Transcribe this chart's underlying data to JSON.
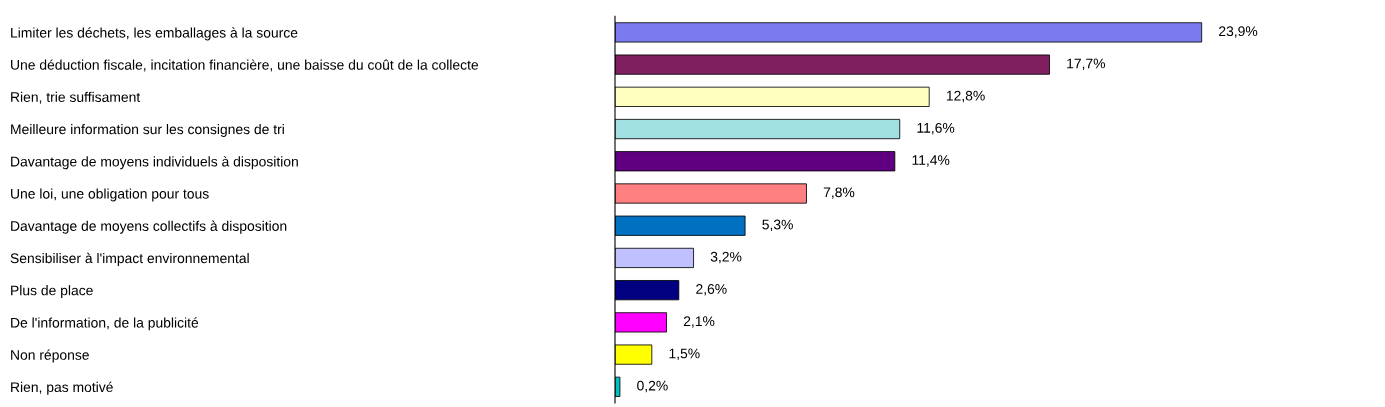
{
  "chart_data": {
    "type": "bar",
    "orientation": "horizontal",
    "categories": [
      "Limiter les déchets, les emballages à la source",
      "Une déduction fiscale, incitation financière, une baisse du coût de la collecte",
      "Rien, trie suffisament",
      "Meilleure information sur les consignes de tri",
      "Davantage de moyens individuels à disposition",
      "Une loi, une obligation pour tous",
      "Davantage de moyens collectifs à disposition",
      "Sensibiliser à l'impact environnemental",
      "Plus de place",
      "De l'information, de la publicité",
      "Non réponse",
      "Rien, pas motivé"
    ],
    "values": [
      23.9,
      17.7,
      12.8,
      11.6,
      11.4,
      7.8,
      5.3,
      3.2,
      2.6,
      2.1,
      1.5,
      0.2
    ],
    "value_labels": [
      "23,9%",
      "17,7%",
      "12,8%",
      "11,6%",
      "11,4%",
      "7,8%",
      "5,3%",
      "3,2%",
      "2,6%",
      "2,1%",
      "1,5%",
      "0,2%"
    ],
    "colors": [
      "#7b7bef",
      "#7f1f5f",
      "#ffffc0",
      "#a0e0e0",
      "#600080",
      "#ff8080",
      "#0070c0",
      "#c0c0ff",
      "#000080",
      "#ff00ff",
      "#ffff00",
      "#00c0c0"
    ],
    "grid": false,
    "legend": false
  }
}
